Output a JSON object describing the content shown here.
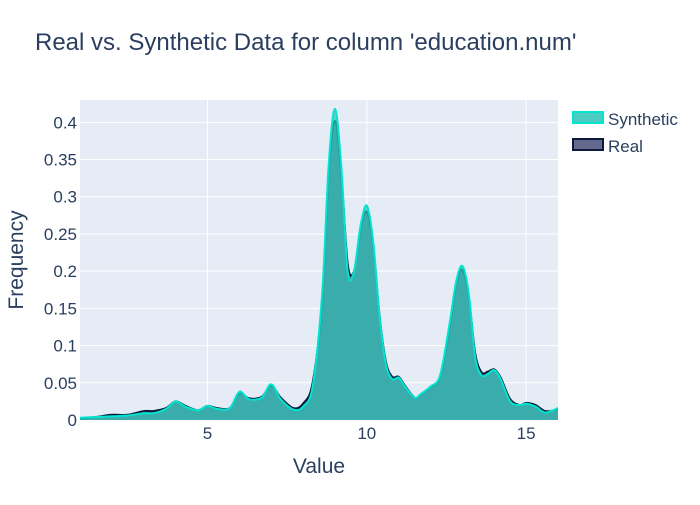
{
  "chart_data": {
    "type": "area",
    "title": "Real vs. Synthetic Data for column 'education.num'",
    "xlabel": "Value",
    "ylabel": "Frequency",
    "xlim": [
      1,
      16
    ],
    "ylim": [
      0,
      0.43
    ],
    "xticks": [
      5,
      10,
      15
    ],
    "xtick_labels": [
      "5",
      "10",
      "15"
    ],
    "yticks": [
      0,
      0.05,
      0.1,
      0.15,
      0.2,
      0.25,
      0.3,
      0.35,
      0.4
    ],
    "ytick_labels": [
      "0",
      "0.05",
      "0.1",
      "0.15",
      "0.2",
      "0.25",
      "0.3",
      "0.35",
      "0.4"
    ],
    "grid": true,
    "legend_position": "top-right",
    "series": [
      {
        "name": "Synthetic",
        "color": "#00e5d0",
        "fill_color": "#2ec4b6",
        "x": [
          1,
          1.5,
          2,
          2.5,
          3,
          3.3,
          3.7,
          4,
          4.3,
          4.7,
          5,
          5.3,
          5.7,
          6,
          6.3,
          6.7,
          7,
          7.3,
          7.7,
          8,
          8.3,
          8.6,
          8.8,
          9,
          9.2,
          9.4,
          9.6,
          9.8,
          10,
          10.2,
          10.4,
          10.6,
          10.8,
          11,
          11.2,
          11.5,
          11.7,
          12,
          12.3,
          12.6,
          12.8,
          13,
          13.2,
          13.4,
          13.6,
          13.8,
          14,
          14.2,
          14.5,
          14.8,
          15,
          15.3,
          15.6,
          16
        ],
        "y": [
          0.003,
          0.004,
          0.005,
          0.006,
          0.009,
          0.009,
          0.015,
          0.025,
          0.018,
          0.013,
          0.019,
          0.015,
          0.016,
          0.038,
          0.028,
          0.03,
          0.048,
          0.028,
          0.014,
          0.018,
          0.045,
          0.17,
          0.34,
          0.418,
          0.34,
          0.2,
          0.2,
          0.26,
          0.288,
          0.24,
          0.14,
          0.075,
          0.055,
          0.057,
          0.045,
          0.03,
          0.035,
          0.045,
          0.06,
          0.13,
          0.185,
          0.207,
          0.17,
          0.085,
          0.06,
          0.062,
          0.067,
          0.055,
          0.025,
          0.02,
          0.022,
          0.018,
          0.01,
          0.016
        ]
      },
      {
        "name": "Real",
        "color": "#0b1a3a",
        "fill_color": "#4a4f7a",
        "x": [
          1,
          1.5,
          2,
          2.5,
          3,
          3.3,
          3.7,
          4,
          4.3,
          4.7,
          5,
          5.3,
          5.7,
          6,
          6.3,
          6.7,
          7,
          7.3,
          7.7,
          8,
          8.3,
          8.6,
          8.8,
          9,
          9.2,
          9.4,
          9.6,
          9.8,
          10,
          10.2,
          10.4,
          10.6,
          10.8,
          11,
          11.2,
          11.5,
          11.7,
          12,
          12.3,
          12.6,
          12.8,
          13,
          13.2,
          13.4,
          13.6,
          13.8,
          14,
          14.2,
          14.5,
          14.8,
          15,
          15.3,
          15.6,
          16
        ],
        "y": [
          0.002,
          0.004,
          0.007,
          0.007,
          0.012,
          0.012,
          0.016,
          0.025,
          0.019,
          0.013,
          0.019,
          0.016,
          0.016,
          0.036,
          0.029,
          0.031,
          0.046,
          0.03,
          0.016,
          0.022,
          0.05,
          0.16,
          0.33,
          0.402,
          0.33,
          0.21,
          0.2,
          0.255,
          0.28,
          0.235,
          0.14,
          0.078,
          0.058,
          0.058,
          0.046,
          0.03,
          0.034,
          0.044,
          0.058,
          0.125,
          0.18,
          0.202,
          0.165,
          0.09,
          0.064,
          0.065,
          0.068,
          0.057,
          0.028,
          0.02,
          0.023,
          0.02,
          0.012,
          0.014
        ]
      }
    ]
  }
}
